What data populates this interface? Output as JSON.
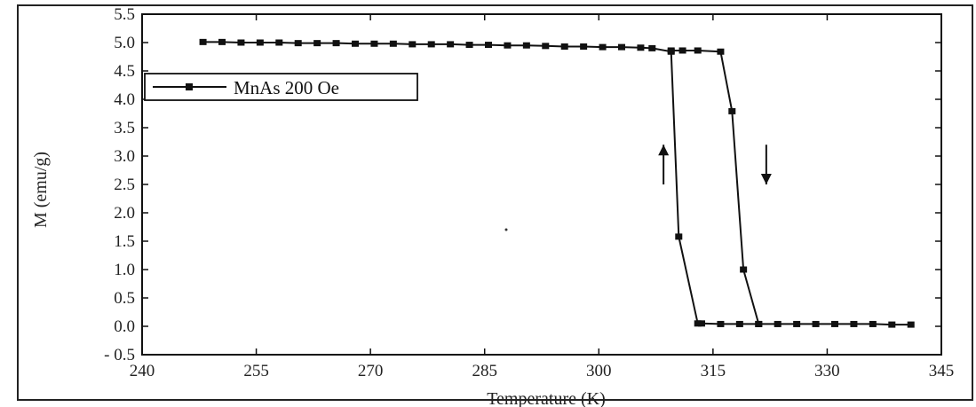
{
  "chart_data": {
    "type": "line",
    "title": "",
    "xlabel": "Temperature (K)",
    "ylabel": "M (emu/g)",
    "xlim": [
      240,
      345
    ],
    "ylim": [
      -0.5,
      5.5
    ],
    "x_ticks": [
      240,
      255,
      270,
      285,
      300,
      315,
      330,
      345
    ],
    "x_tick_labels": [
      "240",
      "255",
      "270",
      "285",
      "300",
      "315",
      "330",
      "345"
    ],
    "y_ticks": [
      -0.5,
      0.0,
      0.5,
      1.0,
      1.5,
      2.0,
      2.5,
      3.0,
      3.5,
      4.0,
      4.5,
      5.0,
      5.5
    ],
    "y_tick_labels": [
      "- 0.5",
      "0.0",
      "0.5",
      "1.0",
      "1.5",
      "2.0",
      "2.5",
      "3.0",
      "3.5",
      "4.0",
      "4.5",
      "5.0",
      "5.5"
    ],
    "grid": false,
    "legend_position": "upper-left",
    "series": [
      {
        "name": "MnAs 200 Oe",
        "color": "#111111",
        "marker": "square",
        "x": [
          248.0,
          250.5,
          253.0,
          255.5,
          258.0,
          260.5,
          263.0,
          265.5,
          268.0,
          270.5,
          273.0,
          275.5,
          278.0,
          280.5,
          283.0,
          285.5,
          288.0,
          290.5,
          293.0,
          295.5,
          298.0,
          300.5,
          303.0,
          305.5,
          307.0,
          309.5,
          310.5,
          313.0,
          313.5,
          316.0,
          318.5,
          321.0,
          323.5,
          326.0,
          328.5,
          331.0,
          333.5,
          336.0,
          338.5,
          341.0
        ],
        "y": [
          5.01,
          5.01,
          5.0,
          5.0,
          5.0,
          4.99,
          4.99,
          4.99,
          4.98,
          4.98,
          4.98,
          4.97,
          4.97,
          4.97,
          4.96,
          4.96,
          4.95,
          4.95,
          4.94,
          4.93,
          4.93,
          4.92,
          4.92,
          4.91,
          4.9,
          4.84,
          1.58,
          0.05,
          0.05,
          0.04,
          0.04,
          0.04,
          0.04,
          0.04,
          0.04,
          0.04,
          0.04,
          0.04,
          0.03,
          0.03
        ]
      }
    ],
    "cooling_branch": {
      "x": [
        309.5,
        311.0,
        313.0,
        316.0,
        317.5,
        319.0,
        321.0
      ],
      "y": [
        4.86,
        4.86,
        4.86,
        4.84,
        3.79,
        1.0,
        0.04
      ]
    },
    "arrows": [
      {
        "direction": "up",
        "x": 308.5,
        "y_from": 2.5,
        "y_to": 3.2
      },
      {
        "direction": "down",
        "x": 322.0,
        "y_from": 3.2,
        "y_to": 2.5
      }
    ]
  }
}
